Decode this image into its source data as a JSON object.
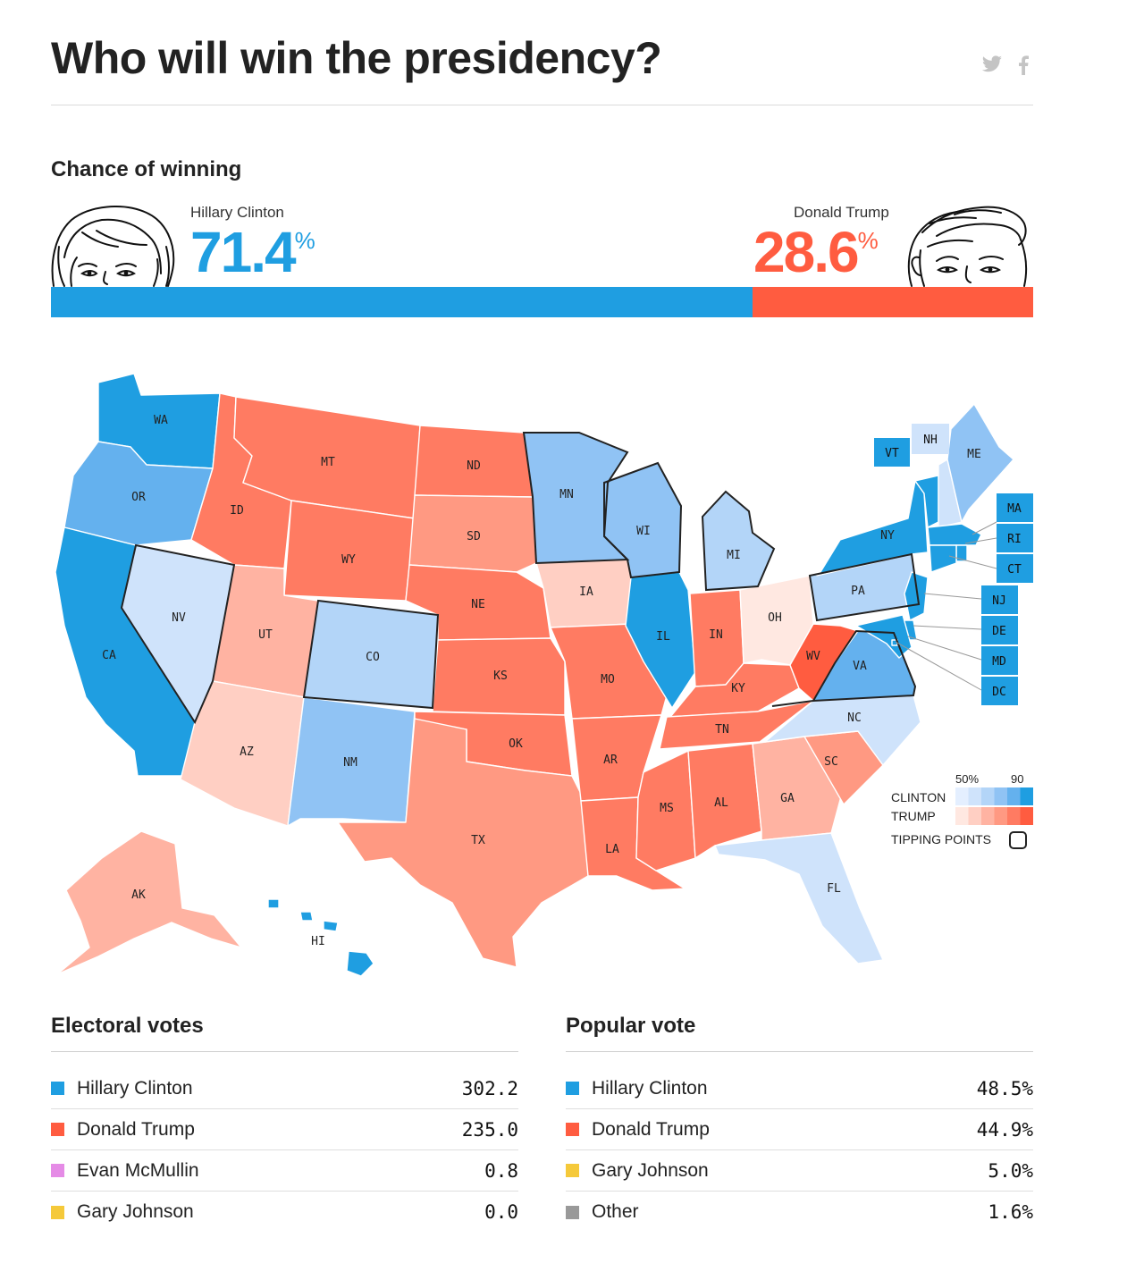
{
  "header": {
    "title": "Who will win the presidency?",
    "share_twitter_icon": "twitter-icon",
    "share_facebook_icon": "facebook-icon"
  },
  "chance": {
    "section_title": "Chance of winning",
    "clinton": {
      "name": "Hillary Clinton",
      "pct": "71.4",
      "unit": "%",
      "value": 71.4,
      "color": "#1f9ee1"
    },
    "trump": {
      "name": "Donald Trump",
      "pct": "28.6",
      "unit": "%",
      "value": 28.6,
      "color": "#ff5c40"
    }
  },
  "map": {
    "legend": {
      "low": "50%",
      "high": "90",
      "clinton": "CLINTON",
      "trump": "TRUMP",
      "tipping": "TIPPING POINTS",
      "blue_ramp": [
        "#e4efff",
        "#cfe3fb",
        "#b3d5f8",
        "#90c3f4",
        "#64b1ee",
        "#1f9ee1"
      ],
      "red_ramp": [
        "#ffe8e1",
        "#ffcfc3",
        "#ffb3a2",
        "#ff9982",
        "#ff7b62",
        "#ff5c40"
      ]
    },
    "states": [
      {
        "abbr": "WA",
        "party": "D",
        "strength": 5
      },
      {
        "abbr": "OR",
        "party": "D",
        "strength": 4
      },
      {
        "abbr": "CA",
        "party": "D",
        "strength": 5
      },
      {
        "abbr": "NV",
        "party": "D",
        "strength": 1
      },
      {
        "abbr": "ID",
        "party": "R",
        "strength": 4
      },
      {
        "abbr": "MT",
        "party": "R",
        "strength": 4
      },
      {
        "abbr": "WY",
        "party": "R",
        "strength": 4
      },
      {
        "abbr": "UT",
        "party": "R",
        "strength": 2
      },
      {
        "abbr": "AZ",
        "party": "R",
        "strength": 1
      },
      {
        "abbr": "CO",
        "party": "D",
        "strength": 2
      },
      {
        "abbr": "NM",
        "party": "D",
        "strength": 3
      },
      {
        "abbr": "ND",
        "party": "R",
        "strength": 4
      },
      {
        "abbr": "SD",
        "party": "R",
        "strength": 3
      },
      {
        "abbr": "NE",
        "party": "R",
        "strength": 4
      },
      {
        "abbr": "KS",
        "party": "R",
        "strength": 4
      },
      {
        "abbr": "OK",
        "party": "R",
        "strength": 4
      },
      {
        "abbr": "TX",
        "party": "R",
        "strength": 3
      },
      {
        "abbr": "MN",
        "party": "D",
        "strength": 3
      },
      {
        "abbr": "IA",
        "party": "R",
        "strength": 1
      },
      {
        "abbr": "MO",
        "party": "R",
        "strength": 4
      },
      {
        "abbr": "AR",
        "party": "R",
        "strength": 4
      },
      {
        "abbr": "LA",
        "party": "R",
        "strength": 4
      },
      {
        "abbr": "WI",
        "party": "D",
        "strength": 3
      },
      {
        "abbr": "IL",
        "party": "D",
        "strength": 5
      },
      {
        "abbr": "MI",
        "party": "D",
        "strength": 2
      },
      {
        "abbr": "IN",
        "party": "R",
        "strength": 4
      },
      {
        "abbr": "OH",
        "party": "R",
        "strength": 0
      },
      {
        "abbr": "KY",
        "party": "R",
        "strength": 4
      },
      {
        "abbr": "TN",
        "party": "R",
        "strength": 4
      },
      {
        "abbr": "MS",
        "party": "R",
        "strength": 4
      },
      {
        "abbr": "AL",
        "party": "R",
        "strength": 4
      },
      {
        "abbr": "GA",
        "party": "R",
        "strength": 2
      },
      {
        "abbr": "FL",
        "party": "D",
        "strength": 1
      },
      {
        "abbr": "SC",
        "party": "R",
        "strength": 3
      },
      {
        "abbr": "NC",
        "party": "D",
        "strength": 1
      },
      {
        "abbr": "VA",
        "party": "D",
        "strength": 4
      },
      {
        "abbr": "WV",
        "party": "R",
        "strength": 5
      },
      {
        "abbr": "PA",
        "party": "D",
        "strength": 2
      },
      {
        "abbr": "NY",
        "party": "D",
        "strength": 5
      },
      {
        "abbr": "VT",
        "party": "D",
        "strength": 5
      },
      {
        "abbr": "NH",
        "party": "D",
        "strength": 1
      },
      {
        "abbr": "ME",
        "party": "D",
        "strength": 3
      },
      {
        "abbr": "AK",
        "party": "R",
        "strength": 2
      },
      {
        "abbr": "HI",
        "party": "D",
        "strength": 5
      },
      {
        "abbr": "MA",
        "party": "D",
        "strength": 5
      },
      {
        "abbr": "RI",
        "party": "D",
        "strength": 5
      },
      {
        "abbr": "CT",
        "party": "D",
        "strength": 5
      },
      {
        "abbr": "NJ",
        "party": "D",
        "strength": 5
      },
      {
        "abbr": "DE",
        "party": "D",
        "strength": 5
      },
      {
        "abbr": "MD",
        "party": "D",
        "strength": 5
      },
      {
        "abbr": "DC",
        "party": "D",
        "strength": 5
      }
    ]
  },
  "electoral": {
    "title": "Electoral votes",
    "rows": [
      {
        "name": "Hillary Clinton",
        "value": "302.2",
        "color": "#1f9ee1"
      },
      {
        "name": "Donald Trump",
        "value": "235.0",
        "color": "#ff5c40"
      },
      {
        "name": "Evan McMullin",
        "value": "0.8",
        "color": "#e58be6"
      },
      {
        "name": "Gary Johnson",
        "value": "0.0",
        "color": "#f5c93a"
      }
    ]
  },
  "popular": {
    "title": "Popular vote",
    "rows": [
      {
        "name": "Hillary Clinton",
        "value": "48.5%",
        "color": "#1f9ee1"
      },
      {
        "name": "Donald Trump",
        "value": "44.9%",
        "color": "#ff5c40"
      },
      {
        "name": "Gary Johnson",
        "value": "5.0%",
        "color": "#f5c93a"
      },
      {
        "name": "Other",
        "value": "1.6%",
        "color": "#999999"
      }
    ]
  }
}
